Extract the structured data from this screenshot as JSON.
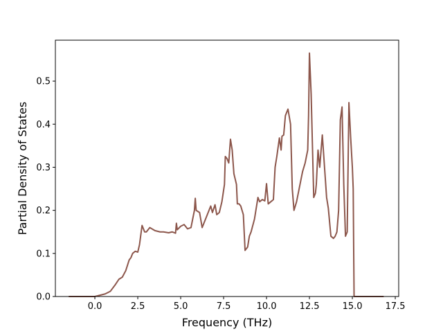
{
  "chart_data": {
    "type": "line",
    "title": "",
    "xlabel": "Frequency (THz)",
    "ylabel": "Partial Density of States",
    "xlim": [
      -2.3,
      17.7
    ],
    "ylim": [
      0,
      0.595
    ],
    "xticks": [
      0.0,
      2.5,
      5.0,
      7.5,
      10.0,
      12.5,
      15.0,
      17.5
    ],
    "xtick_labels": [
      "0.0",
      "2.5",
      "5.0",
      "7.5",
      "10.0",
      "12.5",
      "15.0",
      "17.5"
    ],
    "yticks": [
      0.0,
      0.1,
      0.2,
      0.3,
      0.4,
      0.5
    ],
    "ytick_labels": [
      "0.0",
      "0.1",
      "0.2",
      "0.3",
      "0.4",
      "0.5"
    ],
    "grid": false,
    "legend": "none",
    "series": [
      {
        "color": "#8c564b",
        "x": [
          -1.5,
          0.0,
          0.3,
          0.6,
          0.9,
          1.2,
          1.4,
          1.6,
          1.8,
          2.0,
          2.1,
          2.2,
          2.35,
          2.5,
          2.6,
          2.75,
          2.9,
          3.0,
          3.2,
          3.5,
          3.8,
          4.0,
          4.3,
          4.5,
          4.7,
          4.75,
          4.8,
          5.0,
          5.2,
          5.4,
          5.6,
          5.8,
          5.85,
          5.9,
          6.1,
          6.25,
          6.5,
          6.75,
          6.85,
          7.0,
          7.1,
          7.25,
          7.4,
          7.55,
          7.6,
          7.7,
          7.8,
          7.9,
          8.0,
          8.1,
          8.25,
          8.3,
          8.4,
          8.5,
          8.65,
          8.75,
          8.9,
          9.0,
          9.1,
          9.3,
          9.5,
          9.6,
          9.75,
          9.9,
          10.0,
          10.1,
          10.25,
          10.4,
          10.5,
          10.6,
          10.75,
          10.85,
          10.9,
          11.0,
          11.1,
          11.25,
          11.4,
          11.5,
          11.6,
          11.75,
          11.9,
          12.1,
          12.25,
          12.4,
          12.45,
          12.5,
          12.6,
          12.75,
          12.85,
          12.9,
          13.0,
          13.1,
          13.25,
          13.5,
          13.6,
          13.75,
          13.9,
          14.0,
          14.1,
          14.2,
          14.3,
          14.4,
          14.5,
          14.6,
          14.7,
          14.8,
          14.9,
          15.0,
          15.05,
          15.1,
          15.15,
          16.8
        ],
        "y": [
          0.0,
          0.0,
          0.003,
          0.006,
          0.012,
          0.028,
          0.04,
          0.045,
          0.06,
          0.085,
          0.09,
          0.1,
          0.105,
          0.103,
          0.12,
          0.165,
          0.15,
          0.15,
          0.16,
          0.153,
          0.15,
          0.15,
          0.148,
          0.15,
          0.147,
          0.17,
          0.155,
          0.163,
          0.167,
          0.157,
          0.16,
          0.2,
          0.228,
          0.2,
          0.195,
          0.16,
          0.185,
          0.21,
          0.195,
          0.213,
          0.19,
          0.195,
          0.22,
          0.26,
          0.325,
          0.32,
          0.31,
          0.365,
          0.34,
          0.285,
          0.26,
          0.215,
          0.215,
          0.21,
          0.19,
          0.107,
          0.115,
          0.14,
          0.15,
          0.18,
          0.23,
          0.22,
          0.225,
          0.222,
          0.262,
          0.215,
          0.22,
          0.225,
          0.3,
          0.325,
          0.368,
          0.34,
          0.372,
          0.375,
          0.42,
          0.435,
          0.4,
          0.25,
          0.2,
          0.22,
          0.25,
          0.29,
          0.31,
          0.34,
          0.42,
          0.565,
          0.47,
          0.23,
          0.24,
          0.26,
          0.34,
          0.3,
          0.375,
          0.23,
          0.205,
          0.14,
          0.135,
          0.14,
          0.15,
          0.2,
          0.41,
          0.44,
          0.26,
          0.14,
          0.15,
          0.45,
          0.37,
          0.3,
          0.25,
          0.0,
          0.0,
          0.0
        ]
      }
    ]
  }
}
